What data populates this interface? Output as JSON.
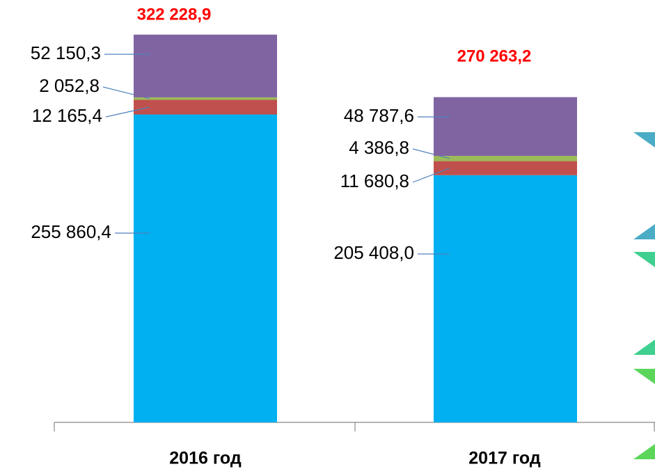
{
  "chart_data": {
    "type": "stacked_bar",
    "categories": [
      "2016 год",
      "2017 год"
    ],
    "ylim": [
      0,
      340000
    ],
    "series": [
      {
        "color": "#00b0f0",
        "values": [
          255860.4,
          205408.0
        ],
        "value_labels": [
          "255 860,4",
          "205 408,0"
        ]
      },
      {
        "color": "#c0504d",
        "values": [
          12165.4,
          11680.8
        ],
        "value_labels": [
          "12 165,4",
          "11 680,8"
        ]
      },
      {
        "color": "#9bbb59",
        "values": [
          2052.8,
          4386.8
        ],
        "value_labels": [
          "2 052,8",
          "4 386,8"
        ]
      },
      {
        "color": "#8064a2",
        "values": [
          52150.3,
          48787.6
        ],
        "value_labels": [
          "52 150,3",
          "48 787,6"
        ]
      }
    ],
    "totals": [
      322228.9,
      270263.2
    ],
    "total_labels": [
      "322 228,9",
      "270 263,2"
    ]
  }
}
